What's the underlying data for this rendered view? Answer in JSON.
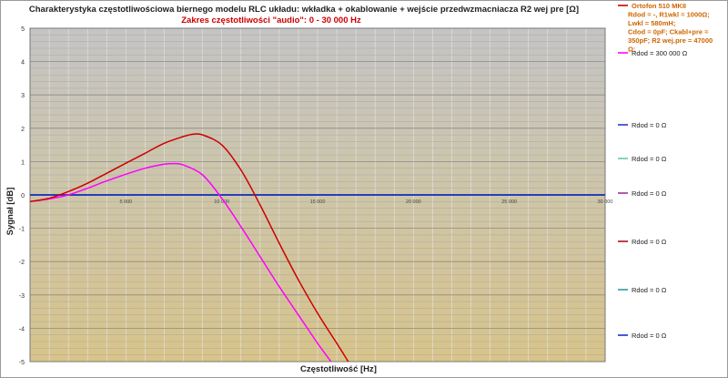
{
  "chart_data": {
    "type": "line",
    "title": "Charakterystyka częstotliwościowa biernego modelu RLC układu:   wkładka + okablowanie + wejście przedwzmacniacza R2 wej pre [Ω]",
    "subtitle": "Zakres częstotliwości \"audio\":  0  -  30 000 Hz",
    "xlabel": "Częstotliwość    [Hz]",
    "ylabel": "Sygnał   [dB]",
    "xlim": [
      0,
      30000
    ],
    "ylim": [
      -5,
      5
    ],
    "x_ticks": [
      "5 000",
      "10 000",
      "15 000",
      "20 000",
      "25 000",
      "30 000"
    ],
    "y_ticks": [
      "5",
      "4",
      "3",
      "2",
      "1",
      "0",
      "-1",
      "-2",
      "-3",
      "-4",
      "-5"
    ],
    "grid": true,
    "legend_position": "right",
    "series": [
      {
        "name": "Ortofon 510 MKII\nRdod = -,  R1wkl = 1000Ω;  Lwkl = 580mH;\nCdod = 0pF;  Ckabl+pre = 350pF;  R2 wej.pre = 47000 Ω;",
        "color": "#cc0000",
        "x": [
          0,
          1000,
          2000,
          3000,
          4000,
          5000,
          6000,
          7000,
          8000,
          8500,
          9000,
          10000,
          11000,
          12000,
          13000,
          14000,
          15000,
          16000,
          16600
        ],
        "y": [
          -0.2,
          -0.1,
          0.1,
          0.35,
          0.65,
          0.95,
          1.25,
          1.55,
          1.75,
          1.82,
          1.8,
          1.5,
          0.75,
          -0.3,
          -1.45,
          -2.55,
          -3.55,
          -4.45,
          -5.0
        ]
      },
      {
        "name": "Rdod = 300 000  Ω",
        "color": "#ff00ff",
        "x": [
          0,
          1000,
          2000,
          3000,
          4000,
          5000,
          6000,
          7000,
          7500,
          8000,
          9000,
          10000,
          11000,
          12000,
          13000,
          14000,
          15000,
          15700
        ],
        "y": [
          -0.2,
          -0.12,
          0.0,
          0.2,
          0.42,
          0.62,
          0.8,
          0.92,
          0.94,
          0.9,
          0.6,
          -0.1,
          -0.95,
          -1.85,
          -2.75,
          -3.6,
          -4.45,
          -5.0
        ]
      },
      {
        "name": "Rdod = 0  Ω",
        "color": "#3333cc",
        "x": [
          0,
          30000
        ],
        "y": [
          0,
          0
        ]
      },
      {
        "name": "Rdod = 0  Ω",
        "color": "#66cc99",
        "x": [
          0,
          30000
        ],
        "y": [
          0,
          0
        ]
      },
      {
        "name": "Rdod = 0  Ω",
        "color": "#993399",
        "x": [
          0,
          30000
        ],
        "y": [
          0,
          0
        ]
      },
      {
        "name": "Rdod = 0  Ω",
        "color": "#aa1122",
        "x": [
          0,
          30000
        ],
        "y": [
          0,
          0
        ]
      },
      {
        "name": "Rdod = 0  Ω",
        "color": "#339999",
        "x": [
          0,
          30000
        ],
        "y": [
          0,
          0
        ]
      },
      {
        "name": "Rdod = 0  Ω",
        "color": "#1133cc",
        "x": [
          0,
          30000
        ],
        "y": [
          0,
          0
        ]
      }
    ]
  }
}
